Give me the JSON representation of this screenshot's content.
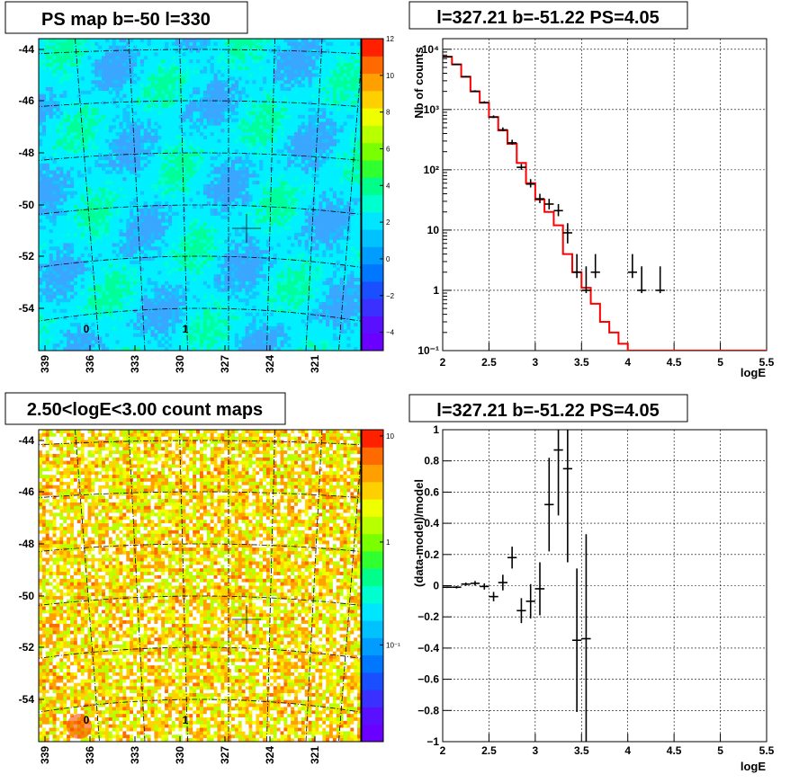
{
  "colors": {
    "model_line": "#ff0000",
    "data_points": "#000000",
    "map1_background": "#00f0ff",
    "map2_background": "#ffd200"
  },
  "charts": {
    "map1": {
      "title": "PS map b=-50 l=330",
      "lat_ticks": [
        "-44",
        "-46",
        "-48",
        "-50",
        "-52",
        "-54"
      ],
      "lon_ticks": [
        "339",
        "336",
        "333",
        "330",
        "327",
        "324",
        "321"
      ],
      "palette_ticks": [
        "12",
        "10",
        "8",
        "6",
        "4",
        "2",
        "0",
        "−2",
        "−4"
      ],
      "palette_min": -5,
      "palette_max": 12,
      "cell_labels": [
        "0",
        "1"
      ],
      "marker": {
        "l": 327.2,
        "b": -51.0
      }
    },
    "map2": {
      "title": "2.50<logE<3.00 count maps",
      "lat_ticks": [
        "-44",
        "-46",
        "-48",
        "-50",
        "-52",
        "-54"
      ],
      "lon_ticks": [
        "339",
        "336",
        "333",
        "330",
        "327",
        "324",
        "321"
      ],
      "palette_ticks": [
        "10",
        "1",
        "10⁻¹"
      ],
      "cell_labels": [
        "0",
        "1"
      ],
      "marker": {
        "l": 327.2,
        "b": -51.0
      }
    },
    "spectrum": {
      "title": "l=327.21 b=-51.22 PS=4.05",
      "ylabel": "Nb of counts",
      "xlabel": "logE",
      "xticks": [
        "2",
        "2.5",
        "3",
        "3.5",
        "4",
        "4.5",
        "5",
        "5.5"
      ],
      "yticks": [
        "10⁻¹",
        "1",
        "10",
        "10²",
        "10³",
        "10⁴"
      ]
    },
    "residual": {
      "title": "l=327.21 b=-51.22 PS=4.05",
      "ylabel": "(data-model)/model",
      "xlabel": "logE",
      "xticks": [
        "2",
        "2.5",
        "3",
        "3.5",
        "4",
        "4.5",
        "5",
        "5.5"
      ],
      "yticks": [
        "−1",
        "−0.8",
        "−0.6",
        "−0.4",
        "−0.2",
        "0",
        "0.2",
        "0.4",
        "0.6",
        "0.8",
        "1"
      ]
    }
  },
  "chart_data": [
    {
      "type": "heatmap",
      "title": "PS map b=-50 l=330",
      "x_range": [
        341,
        319
      ],
      "y_range": [
        -55.7,
        -43.5
      ],
      "colorbar_range": [
        -5,
        12
      ]
    },
    {
      "type": "heatmap",
      "title": "2.50<logE<3.00 count maps",
      "x_range": [
        341,
        319
      ],
      "y_range": [
        -55.7,
        -43.5
      ],
      "log_colorbar": true
    },
    {
      "type": "line",
      "title": "l=327.21 b=-51.22 PS=4.05",
      "xlabel": "logE",
      "ylabel": "Nb of counts",
      "xlim": [
        2,
        5.5
      ],
      "ylim": [
        0.1,
        15000
      ],
      "log_y": true,
      "series": [
        {
          "kind": "step",
          "edges": [
            2.0,
            2.1,
            2.2,
            2.3,
            2.4,
            2.5,
            2.6,
            2.7,
            2.8,
            2.9,
            3.0,
            3.1,
            3.2,
            3.3,
            3.4,
            3.5,
            3.6,
            3.7,
            3.8,
            3.9,
            4.0,
            4.1,
            4.2,
            4.3,
            4.4,
            4.5,
            4.6,
            4.7,
            4.8,
            4.9,
            5.0,
            5.1,
            5.2,
            5.3,
            5.4,
            5.5
          ],
          "values": [
            7500,
            5600,
            3500,
            2000,
            1300,
            750,
            450,
            270,
            130,
            60,
            32,
            20,
            12,
            4,
            2,
            1.1,
            0.6,
            0.3,
            0.2,
            0.13,
            0.1,
            0.1,
            0.1,
            0.1,
            0.1,
            0.1,
            0.1,
            0.1,
            0.1,
            0.1,
            0.1,
            0.1,
            0.1,
            0.1,
            0.1
          ]
        },
        {
          "kind": "points",
          "x": [
            2.05,
            2.15,
            2.25,
            2.35,
            2.45,
            2.55,
            2.65,
            2.75,
            2.85,
            2.95,
            3.05,
            3.15,
            3.25,
            3.35,
            3.45,
            3.55,
            3.65,
            4.05,
            4.15,
            4.35
          ],
          "y": [
            7500,
            5600,
            3500,
            2000,
            1300,
            750,
            460,
            280,
            110,
            58,
            33,
            27,
            21,
            9,
            2,
            1,
            2,
            2,
            1,
            1
          ],
          "err_low": [
            7400,
            5520,
            3440,
            1955,
            1264,
            723,
            439,
            263,
            100,
            51,
            28,
            22,
            17,
            6,
            1.6,
            0.9,
            1.6,
            1.6,
            0.9,
            0.9
          ],
          "err_high": [
            7700,
            5760,
            3620,
            2090,
            1372,
            800,
            505,
            315,
            125,
            70,
            40,
            33,
            27,
            13,
            4,
            2.5,
            4,
            4,
            2.5,
            2.5
          ]
        }
      ]
    },
    {
      "type": "scatter",
      "title": "l=327.21 b=-51.22 PS=4.05",
      "xlabel": "logE",
      "ylabel": "(data-model)/model",
      "xlim": [
        2,
        5.5
      ],
      "ylim": [
        -1,
        1
      ],
      "x": [
        2.05,
        2.15,
        2.25,
        2.35,
        2.45,
        2.55,
        2.65,
        2.75,
        2.85,
        2.95,
        3.05,
        3.15,
        3.25,
        3.35,
        3.45,
        3.55
      ],
      "y": [
        -0.01,
        -0.01,
        0.01,
        0.015,
        -0.005,
        -0.07,
        0.02,
        0.18,
        -0.16,
        -0.1,
        -0.02,
        0.52,
        0.87,
        0.75,
        -0.35,
        -0.34
      ],
      "err": [
        0.005,
        0.008,
        0.01,
        0.015,
        0.02,
        0.03,
        0.05,
        0.07,
        0.08,
        0.11,
        0.17,
        0.3,
        0.42,
        0.6,
        0.46,
        0.67
      ]
    }
  ]
}
